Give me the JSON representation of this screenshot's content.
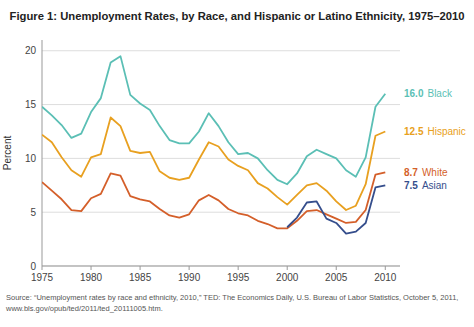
{
  "chart_data": {
    "type": "line",
    "title": "Figure 1: Unemployment Rates, by Race, and Hispanic or Latino Ethnicity, 1975–2010",
    "ylabel": "Percent",
    "annotations": [
      "Source: “Unemployment rates by race and ethnicity, 2010,” TED: The Economics Daily, U.S. Bureau of Labor Statistics, October 5, 2011,",
      "www.bls.gov/opub/ted/2011/ted_20111005.htm."
    ],
    "x": [
      1975,
      1976,
      1977,
      1978,
      1979,
      1980,
      1981,
      1982,
      1983,
      1984,
      1985,
      1986,
      1987,
      1988,
      1989,
      1990,
      1991,
      1992,
      1993,
      1994,
      1995,
      1996,
      1997,
      1998,
      1999,
      2000,
      2001,
      2002,
      2003,
      2004,
      2005,
      2006,
      2007,
      2008,
      2009,
      2010
    ],
    "series": [
      {
        "name": "Black",
        "color": "#5BBFB5",
        "values": [
          14.8,
          14.0,
          13.1,
          11.9,
          12.3,
          14.3,
          15.6,
          18.9,
          19.5,
          15.9,
          15.1,
          14.5,
          13.0,
          11.7,
          11.4,
          11.4,
          12.5,
          14.2,
          13.0,
          11.5,
          10.4,
          10.5,
          10.0,
          8.9,
          8.0,
          7.6,
          8.6,
          10.2,
          10.8,
          10.4,
          10.0,
          8.9,
          8.3,
          10.1,
          14.8,
          16.0
        ],
        "value_labels": [
          null,
          null,
          null,
          null,
          null,
          null,
          null,
          null,
          null,
          null,
          null,
          null,
          null,
          null,
          null,
          null,
          null,
          null,
          null,
          null,
          null,
          null,
          null,
          null,
          null,
          null,
          null,
          null,
          null,
          null,
          null,
          null,
          null,
          null,
          null,
          "16.0"
        ]
      },
      {
        "name": "Hispanic",
        "color": "#E8A020",
        "values": [
          12.2,
          11.5,
          10.1,
          8.9,
          8.3,
          10.1,
          10.4,
          13.8,
          13.0,
          10.7,
          10.5,
          10.6,
          8.8,
          8.2,
          8.0,
          8.2,
          9.9,
          11.5,
          11.1,
          9.9,
          9.3,
          8.9,
          7.7,
          7.2,
          6.4,
          5.7,
          6.6,
          7.5,
          7.7,
          7.0,
          6.0,
          5.2,
          5.6,
          7.6,
          12.1,
          12.5
        ],
        "value_labels": [
          null,
          null,
          null,
          null,
          null,
          null,
          null,
          null,
          null,
          null,
          null,
          null,
          null,
          null,
          null,
          null,
          null,
          null,
          null,
          null,
          null,
          null,
          null,
          null,
          null,
          null,
          null,
          null,
          null,
          null,
          null,
          null,
          null,
          null,
          null,
          "12.5"
        ]
      },
      {
        "name": "White",
        "color": "#D45F2A",
        "values": [
          7.8,
          7.0,
          6.2,
          5.2,
          5.1,
          6.3,
          6.7,
          8.6,
          8.4,
          6.5,
          6.2,
          6.0,
          5.3,
          4.7,
          4.5,
          4.8,
          6.1,
          6.6,
          6.1,
          5.3,
          4.9,
          4.7,
          4.2,
          3.9,
          3.5,
          3.5,
          4.2,
          5.1,
          5.2,
          4.8,
          4.4,
          4.0,
          4.1,
          5.2,
          8.5,
          8.7
        ],
        "value_labels": [
          null,
          null,
          null,
          null,
          null,
          null,
          null,
          null,
          null,
          null,
          null,
          null,
          null,
          null,
          null,
          null,
          null,
          null,
          null,
          null,
          null,
          null,
          null,
          null,
          null,
          null,
          null,
          null,
          null,
          null,
          null,
          null,
          null,
          null,
          null,
          "8.7"
        ]
      },
      {
        "name": "Asian",
        "color": "#354E8C",
        "values": [
          null,
          null,
          null,
          null,
          null,
          null,
          null,
          null,
          null,
          null,
          null,
          null,
          null,
          null,
          null,
          null,
          null,
          null,
          null,
          null,
          null,
          null,
          null,
          null,
          null,
          3.6,
          4.5,
          5.9,
          6.0,
          4.4,
          4.0,
          3.0,
          3.2,
          4.0,
          7.3,
          7.5
        ],
        "value_labels": [
          null,
          null,
          null,
          null,
          null,
          null,
          null,
          null,
          null,
          null,
          null,
          null,
          null,
          null,
          null,
          null,
          null,
          null,
          null,
          null,
          null,
          null,
          null,
          null,
          null,
          null,
          null,
          null,
          null,
          null,
          null,
          null,
          null,
          null,
          null,
          "7.5"
        ]
      }
    ],
    "xlim": [
      1975,
      2011.5
    ],
    "ylim": [
      0,
      21
    ],
    "xticks": [
      1975,
      1980,
      1985,
      1990,
      1995,
      2000,
      2005,
      2010
    ],
    "yticks": [
      0,
      5,
      10,
      15,
      20
    ],
    "grid": true
  }
}
